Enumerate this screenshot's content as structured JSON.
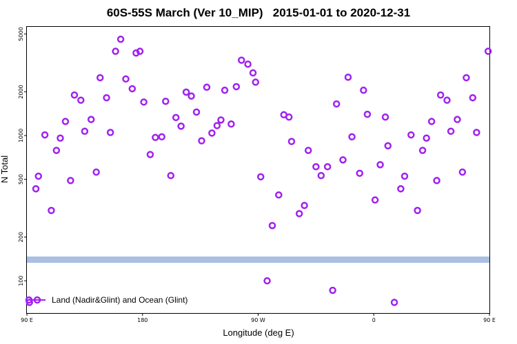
{
  "chart_data": {
    "type": "scatter",
    "title": "60S-55S March (Ver 10_MIP)   2015-01-01 to 2020-12-31",
    "xlabel": "Longitude (deg E)",
    "ylabel": "N Total",
    "xlim": [
      90,
      450
    ],
    "ylim": [
      60,
      5600
    ],
    "yscale": "log",
    "x_ticks": [
      {
        "value": 90,
        "label": "90 E"
      },
      {
        "value": 180,
        "label": "180"
      },
      {
        "value": 270,
        "label": "90 W"
      },
      {
        "value": 360,
        "label": "0"
      },
      {
        "value": 450,
        "label": "90 E"
      }
    ],
    "y_ticks": [
      {
        "value": 100,
        "label": "100"
      },
      {
        "value": 200,
        "label": "200"
      },
      {
        "value": 500,
        "label": "500"
      },
      {
        "value": 1000,
        "label": "1000"
      },
      {
        "value": 2000,
        "label": "2000"
      },
      {
        "value": 5000,
        "label": "5000"
      }
    ],
    "land_band": {
      "y_low": 133,
      "y_high": 147,
      "color": "#a9bfe3"
    },
    "series": [
      {
        "name": "Land (Nadir&Glint) and Ocean (Glint)",
        "color": "#a020f0",
        "marker": "open-circle",
        "points": [
          {
            "x": 92,
            "y": 71
          },
          {
            "x": 97,
            "y": 430
          },
          {
            "x": 99,
            "y": 525
          },
          {
            "x": 104,
            "y": 1010
          },
          {
            "x": 109,
            "y": 305
          },
          {
            "x": 113,
            "y": 790
          },
          {
            "x": 116,
            "y": 960
          },
          {
            "x": 120,
            "y": 1250
          },
          {
            "x": 124,
            "y": 490
          },
          {
            "x": 127,
            "y": 1900
          },
          {
            "x": 132,
            "y": 1750
          },
          {
            "x": 135,
            "y": 1070
          },
          {
            "x": 140,
            "y": 1290
          },
          {
            "x": 144,
            "y": 560
          },
          {
            "x": 147,
            "y": 2500
          },
          {
            "x": 152,
            "y": 1820
          },
          {
            "x": 155,
            "y": 1050
          },
          {
            "x": 159,
            "y": 3800
          },
          {
            "x": 163,
            "y": 4600
          },
          {
            "x": 167,
            "y": 2450
          },
          {
            "x": 172,
            "y": 2100
          },
          {
            "x": 175,
            "y": 3700
          },
          {
            "x": 178,
            "y": 3800
          },
          {
            "x": 181,
            "y": 1700
          },
          {
            "x": 186,
            "y": 740
          },
          {
            "x": 190,
            "y": 970
          },
          {
            "x": 195,
            "y": 980
          },
          {
            "x": 198,
            "y": 1720
          },
          {
            "x": 202,
            "y": 530
          },
          {
            "x": 206,
            "y": 1330
          },
          {
            "x": 210,
            "y": 1160
          },
          {
            "x": 214,
            "y": 1990
          },
          {
            "x": 218,
            "y": 1870
          },
          {
            "x": 222,
            "y": 1450
          },
          {
            "x": 226,
            "y": 920
          },
          {
            "x": 230,
            "y": 2150
          },
          {
            "x": 234,
            "y": 1040
          },
          {
            "x": 238,
            "y": 1170
          },
          {
            "x": 241,
            "y": 1280
          },
          {
            "x": 244,
            "y": 2050
          },
          {
            "x": 249,
            "y": 1200
          },
          {
            "x": 253,
            "y": 2170
          },
          {
            "x": 257,
            "y": 3300
          },
          {
            "x": 262,
            "y": 3100
          },
          {
            "x": 266,
            "y": 2700
          },
          {
            "x": 268,
            "y": 2330
          },
          {
            "x": 272,
            "y": 520
          },
          {
            "x": 277,
            "y": 100
          },
          {
            "x": 281,
            "y": 240
          },
          {
            "x": 286,
            "y": 390
          },
          {
            "x": 290,
            "y": 1390
          },
          {
            "x": 294,
            "y": 1340
          },
          {
            "x": 296,
            "y": 910
          },
          {
            "x": 302,
            "y": 290
          },
          {
            "x": 306,
            "y": 330
          },
          {
            "x": 309,
            "y": 790
          },
          {
            "x": 315,
            "y": 610
          },
          {
            "x": 319,
            "y": 530
          },
          {
            "x": 324,
            "y": 610
          },
          {
            "x": 328,
            "y": 86
          },
          {
            "x": 331,
            "y": 1650
          },
          {
            "x": 336,
            "y": 680
          },
          {
            "x": 340,
            "y": 2520
          },
          {
            "x": 343,
            "y": 980
          },
          {
            "x": 349,
            "y": 550
          },
          {
            "x": 352,
            "y": 2050
          },
          {
            "x": 355,
            "y": 1400
          },
          {
            "x": 361,
            "y": 360
          },
          {
            "x": 365,
            "y": 630
          },
          {
            "x": 369,
            "y": 1340
          },
          {
            "x": 371,
            "y": 850
          },
          {
            "x": 376,
            "y": 71
          },
          {
            "x": 381,
            "y": 430
          },
          {
            "x": 384,
            "y": 525
          },
          {
            "x": 389,
            "y": 1010
          },
          {
            "x": 394,
            "y": 305
          },
          {
            "x": 398,
            "y": 790
          },
          {
            "x": 401,
            "y": 960
          },
          {
            "x": 405,
            "y": 1250
          },
          {
            "x": 409,
            "y": 490
          },
          {
            "x": 412,
            "y": 1900
          },
          {
            "x": 417,
            "y": 1750
          },
          {
            "x": 420,
            "y": 1070
          },
          {
            "x": 425,
            "y": 1290
          },
          {
            "x": 429,
            "y": 560
          },
          {
            "x": 432,
            "y": 2500
          },
          {
            "x": 437,
            "y": 1820
          },
          {
            "x": 440,
            "y": 1050
          },
          {
            "x": 449,
            "y": 3800
          }
        ]
      }
    ],
    "legend": {
      "position": "bottom-left",
      "label": "Land (Nadir&Glint) and Ocean (Glint)"
    }
  }
}
